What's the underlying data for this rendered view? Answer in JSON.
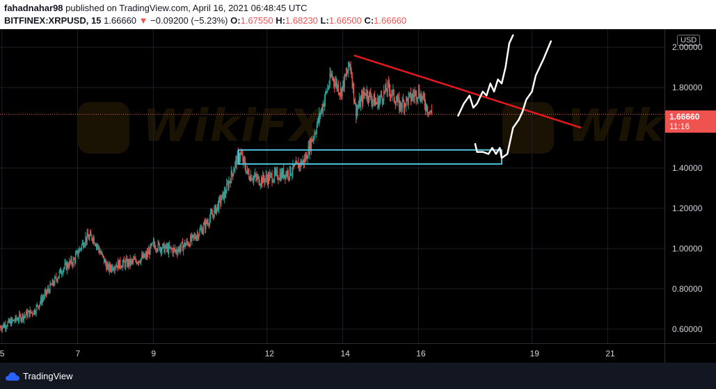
{
  "header": {
    "author": "fahadnahar98",
    "published": "published on TradingView.com, April 16, 2021 06:48:45 UTC",
    "symbol": "BITFINEX:XRPUSD, 15",
    "last": "1.66660",
    "change_arrow": "▼",
    "change": "−0.09200 (−5.23%)",
    "o_label": "O:",
    "o_val": "1.67550",
    "h_label": "H:",
    "h_val": "1.68230",
    "l_label": "L:",
    "l_val": "1.66500",
    "c_label": "C:",
    "c_val": "1.66660"
  },
  "price_axis": {
    "currency": "USD",
    "last_price": "1.66660",
    "countdown": "11:16"
  },
  "footer": {
    "brand": "TradingView"
  },
  "watermark": {
    "text": "WikiFX"
  },
  "colors": {
    "up": "#26a69a",
    "down": "#ef5350",
    "trendline": "#e6191e",
    "box": "#4fc3d9",
    "drawing": "#ffffff",
    "last_line": "#ef5350"
  },
  "chart_data": {
    "type": "candlestick",
    "title": "",
    "ylim": [
      0.53,
      2.09
    ],
    "xlim": [
      4.95,
      22.5
    ],
    "y_ticks": [
      {
        "value": 2.0,
        "label": "2.00000"
      },
      {
        "value": 1.8,
        "label": "1.80000"
      },
      {
        "value": 1.4,
        "label": "1.40000"
      },
      {
        "value": 1.2,
        "label": "1.20000"
      },
      {
        "value": 1.0,
        "label": "1.00000"
      },
      {
        "value": 0.8,
        "label": "0.80000"
      },
      {
        "value": 0.6,
        "label": "0.60000"
      }
    ],
    "x_ticks": [
      {
        "value": 5,
        "label": "5"
      },
      {
        "value": 7,
        "label": "7"
      },
      {
        "value": 9,
        "label": "9"
      },
      {
        "value": 12,
        "label": "12"
      },
      {
        "value": 14,
        "label": "14"
      },
      {
        "value": 16,
        "label": "16"
      },
      {
        "value": 19,
        "label": "19"
      },
      {
        "value": 21,
        "label": "21"
      }
    ],
    "price_path": [
      [
        4.95,
        0.61
      ],
      [
        5.3,
        0.64
      ],
      [
        5.6,
        0.67
      ],
      [
        5.85,
        0.69
      ],
      [
        6.1,
        0.76
      ],
      [
        6.4,
        0.84
      ],
      [
        6.6,
        0.9
      ],
      [
        6.9,
        0.94
      ],
      [
        7.2,
        1.05
      ],
      [
        7.4,
        1.06
      ],
      [
        7.6,
        0.98
      ],
      [
        7.8,
        0.9
      ],
      [
        8.0,
        0.92
      ],
      [
        8.4,
        0.93
      ],
      [
        8.8,
        0.96
      ],
      [
        9.0,
        1.02
      ],
      [
        9.3,
        1.0
      ],
      [
        9.6,
        0.99
      ],
      [
        10.0,
        1.04
      ],
      [
        10.3,
        1.1
      ],
      [
        10.6,
        1.18
      ],
      [
        10.9,
        1.28
      ],
      [
        11.2,
        1.44
      ],
      [
        11.3,
        1.47
      ],
      [
        11.5,
        1.37
      ],
      [
        11.8,
        1.34
      ],
      [
        12.2,
        1.36
      ],
      [
        12.6,
        1.38
      ],
      [
        13.0,
        1.44
      ],
      [
        13.3,
        1.6
      ],
      [
        13.5,
        1.73
      ],
      [
        13.7,
        1.86
      ],
      [
        13.95,
        1.78
      ],
      [
        14.2,
        1.92
      ],
      [
        14.35,
        1.68
      ],
      [
        14.6,
        1.78
      ],
      [
        14.9,
        1.72
      ],
      [
        15.2,
        1.8
      ],
      [
        15.5,
        1.71
      ],
      [
        15.8,
        1.75
      ],
      [
        16.0,
        1.78
      ],
      [
        16.3,
        1.68
      ],
      [
        16.35,
        1.6667
      ]
    ],
    "last_price": 1.6666,
    "annotations": {
      "resistance_trendline": {
        "from": [
          14.3,
          1.96
        ],
        "to": [
          20.3,
          1.6
        ]
      },
      "support_zone": {
        "x_from": 11.25,
        "x_to": 18.2,
        "y_from": 1.42,
        "y_to": 1.49
      }
    }
  }
}
